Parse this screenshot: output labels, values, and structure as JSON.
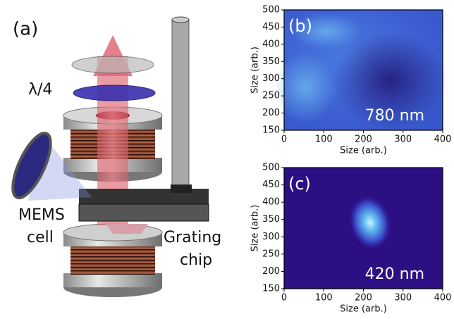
{
  "diagram": {
    "panel_label": "(a)",
    "labels": [
      "λ/4",
      "MEMS",
      "cell",
      "Grating",
      "chip"
    ]
  },
  "chart_data": [
    {
      "type": "image",
      "panel_label": "(b)",
      "annotation": "780 nm",
      "xlabel": "Size (arb.)",
      "ylabel": "Size (arb.)",
      "xlim": [
        0,
        400
      ],
      "ylim": [
        150,
        500
      ],
      "xticks": [
        0,
        100,
        200,
        300,
        400
      ],
      "yticks": [
        150,
        200,
        250,
        300,
        350,
        400,
        450,
        500
      ],
      "colormap": "blue"
    },
    {
      "type": "image",
      "panel_label": "(c)",
      "annotation": "420 nm",
      "xlabel": "Size (arb.)",
      "ylabel": "Size (arb.)",
      "xlim": [
        0,
        400
      ],
      "ylim": [
        150,
        500
      ],
      "xticks": [
        0,
        100,
        200,
        300,
        400
      ],
      "yticks": [
        150,
        200,
        250,
        300,
        350,
        400,
        450,
        500
      ],
      "colormap": "spot"
    }
  ]
}
